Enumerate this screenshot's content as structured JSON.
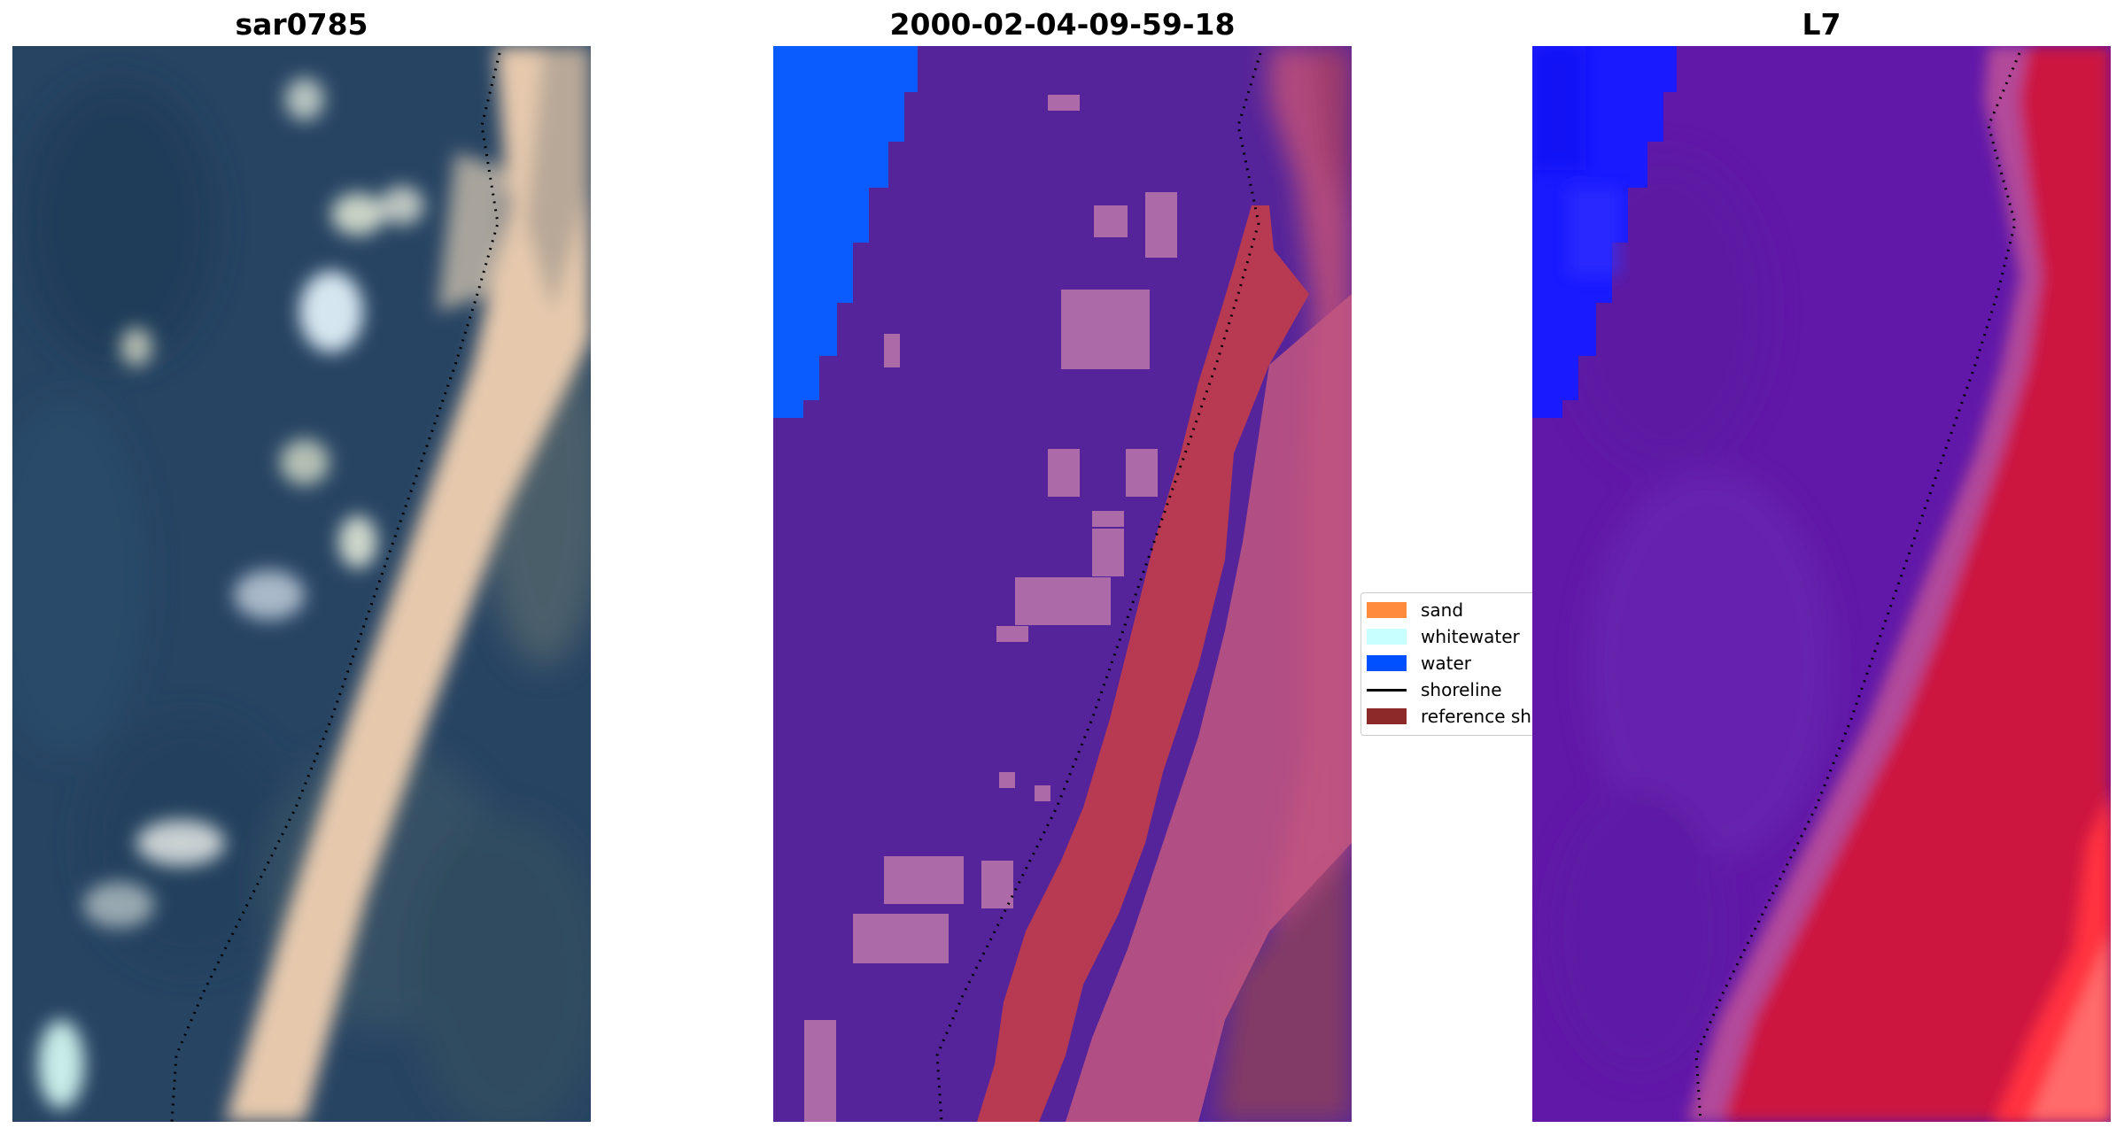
{
  "panels": [
    {
      "title": "sar0785"
    },
    {
      "title": "2000-02-04-09-59-18"
    },
    {
      "title": "L7"
    }
  ],
  "legend": {
    "items": [
      {
        "label": "sand",
        "color": "#ff8c3c",
        "kind": "patch"
      },
      {
        "label": "whitewater",
        "color": "#c8ffff",
        "kind": "patch"
      },
      {
        "label": "water",
        "color": "#0050ff",
        "kind": "patch"
      },
      {
        "label": "shoreline",
        "color": "#000000",
        "kind": "line"
      },
      {
        "label": "reference shoreline",
        "color": "#8c2a2a",
        "kind": "patch"
      }
    ]
  },
  "colors": {
    "rgb_ocean": "#274463",
    "rgb_beach": "#e8cdb3",
    "classified_background": "#55249a",
    "classified_land": "#c04a7a",
    "classified_water": "#0a5cff",
    "classified_ref_band": "#b83a52",
    "l7_water": "#6118a8",
    "l7_land": "#cc1440",
    "l7_deepwater": "#1a1aff"
  }
}
